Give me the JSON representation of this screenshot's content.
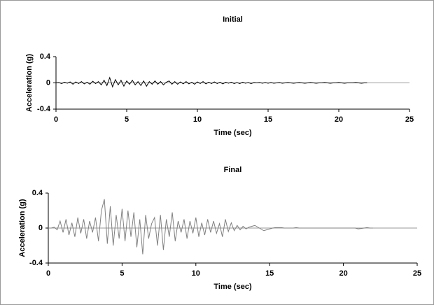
{
  "chart_data": [
    {
      "type": "line",
      "title": "Initial",
      "xlabel": "Time (sec)",
      "ylabel": "Acceleration (g)",
      "xlim": [
        0,
        25
      ],
      "xticks": [
        0,
        5,
        10,
        15,
        20,
        25
      ],
      "ylim": [
        -0.4,
        0.4
      ],
      "yticks": [
        -0.4,
        0,
        0.4
      ],
      "color": "#000000",
      "x": [
        0,
        0.2,
        0.4,
        0.6,
        0.8,
        1,
        1.2,
        1.4,
        1.6,
        1.8,
        2,
        2.2,
        2.4,
        2.6,
        2.8,
        3,
        3.2,
        3.4,
        3.6,
        3.8,
        4,
        4.2,
        4.4,
        4.6,
        4.8,
        5,
        5.2,
        5.4,
        5.6,
        5.8,
        6,
        6.2,
        6.4,
        6.6,
        6.8,
        7,
        7.2,
        7.4,
        7.6,
        7.8,
        8,
        8.2,
        8.4,
        8.6,
        8.8,
        9,
        9.2,
        9.4,
        9.6,
        9.8,
        10,
        10.2,
        10.4,
        10.6,
        10.8,
        11,
        11.2,
        11.4,
        11.6,
        11.8,
        12,
        12.2,
        12.4,
        12.6,
        12.8,
        13,
        13.2,
        13.4,
        13.6,
        13.8,
        14,
        14.2,
        14.4,
        14.6,
        14.8,
        15,
        15.2,
        15.4,
        15.6,
        15.8,
        16,
        16.2,
        16.4,
        16.6,
        16.8,
        17,
        17.2,
        17.4,
        17.6,
        17.8,
        18,
        18.2,
        18.4,
        18.6,
        18.8,
        19,
        19.2,
        19.4,
        19.6,
        19.8,
        20,
        20.2,
        20.4,
        20.6,
        20.8,
        21,
        21.2,
        21.4,
        21.6,
        21.8,
        22
      ],
      "values": [
        0,
        0.005,
        -0.01,
        0.01,
        -0.005,
        0.015,
        -0.02,
        0.015,
        -0.01,
        0.02,
        -0.015,
        0.01,
        -0.02,
        0.025,
        -0.01,
        0.02,
        -0.03,
        0.04,
        -0.04,
        0.08,
        -0.06,
        0.05,
        -0.03,
        0.04,
        -0.05,
        0.03,
        -0.02,
        0.04,
        -0.03,
        0.02,
        -0.04,
        0.03,
        -0.05,
        0.02,
        -0.02,
        0.03,
        -0.02,
        0.02,
        -0.03,
        0.01,
        0.03,
        -0.02,
        0.02,
        -0.02,
        0.015,
        -0.015,
        0.02,
        -0.015,
        0.01,
        -0.02,
        0.015,
        -0.01,
        0.02,
        -0.015,
        0.01,
        -0.01,
        0.015,
        -0.01,
        0.01,
        -0.015,
        0.01,
        -0.005,
        0.01,
        -0.01,
        0.005,
        -0.01,
        0.01,
        -0.005,
        0.005,
        -0.01,
        0.005,
        0,
        0.005,
        -0.005,
        0.005,
        -0.005,
        0.005,
        -0.005,
        0,
        0.005,
        -0.005,
        0,
        0.005,
        0,
        -0.005,
        0,
        0.005,
        0,
        -0.005,
        0,
        0.005,
        0,
        -0.005,
        0,
        0,
        0.005,
        0,
        -0.005,
        0,
        0,
        0.005,
        0,
        -0.005,
        0,
        0,
        0,
        0.005,
        0,
        -0.005,
        0,
        0
      ]
    },
    {
      "type": "line",
      "title": "Final",
      "xlabel": "Time (sec)",
      "ylabel": "Acceleration (g)",
      "xlim": [
        0,
        25
      ],
      "xticks": [
        0,
        5,
        10,
        15,
        20,
        25
      ],
      "ylim": [
        -0.4,
        0.4
      ],
      "yticks": [
        -0.4,
        0,
        0.4
      ],
      "color": "#808080",
      "x": [
        0,
        0.2,
        0.4,
        0.6,
        0.8,
        1,
        1.2,
        1.4,
        1.6,
        1.8,
        2,
        2.2,
        2.4,
        2.6,
        2.8,
        3,
        3.2,
        3.4,
        3.6,
        3.8,
        4,
        4.2,
        4.4,
        4.6,
        4.8,
        5,
        5.2,
        5.4,
        5.6,
        5.8,
        6,
        6.2,
        6.4,
        6.6,
        6.8,
        7,
        7.2,
        7.4,
        7.6,
        7.8,
        8,
        8.2,
        8.4,
        8.6,
        8.8,
        9,
        9.2,
        9.4,
        9.6,
        9.8,
        10,
        10.2,
        10.4,
        10.6,
        10.8,
        11,
        11.2,
        11.4,
        11.6,
        11.8,
        12,
        12.2,
        12.4,
        12.6,
        12.8,
        13,
        13.2,
        13.4,
        13.6,
        13.8,
        14,
        14.2,
        14.4,
        14.6,
        14.8,
        15,
        15.2,
        15.4,
        15.6,
        15.8,
        16,
        16.2,
        16.4,
        16.6,
        16.8,
        17,
        17.2,
        17.4,
        17.6,
        17.8,
        18,
        18.2,
        18.4,
        18.6,
        18.8,
        19,
        19.2,
        19.4,
        19.6,
        19.8,
        20,
        20.2,
        20.4,
        20.6,
        20.8,
        21,
        21.2,
        21.4,
        21.6,
        21.8,
        22
      ],
      "values": [
        0,
        0,
        0.01,
        -0.02,
        0.08,
        -0.05,
        0.1,
        -0.08,
        0.06,
        -0.1,
        0.12,
        -0.06,
        0.1,
        -0.12,
        0.08,
        -0.05,
        0.12,
        -0.15,
        0.2,
        0.33,
        -0.18,
        0.25,
        -0.2,
        0.15,
        -0.12,
        0.22,
        -0.15,
        0.2,
        -0.1,
        0.18,
        -0.22,
        0.1,
        -0.3,
        0.15,
        -0.12,
        0.05,
        0.12,
        -0.2,
        0.15,
        -0.25,
        0.1,
        -0.1,
        0.18,
        -0.15,
        0.08,
        -0.05,
        0.1,
        -0.12,
        0.08,
        -0.06,
        0.12,
        -0.1,
        0.06,
        -0.08,
        0.1,
        -0.05,
        0.08,
        -0.06,
        0.05,
        -0.1,
        0.1,
        -0.04,
        0.06,
        -0.03,
        0.03,
        -0.02,
        0.02,
        -0.01,
        0.01,
        0.02,
        0.03,
        0.01,
        -0.01,
        -0.03,
        -0.02,
        -0.01,
        0,
        0.005,
        0.005,
        0.005,
        0,
        0,
        0,
        0,
        0.005,
        0,
        0,
        0,
        0,
        0,
        0,
        0,
        0,
        0,
        0,
        0,
        0,
        0,
        0,
        0,
        0,
        0,
        0,
        0,
        0,
        -0.01,
        -0.005,
        0,
        0.005,
        0,
        0
      ]
    }
  ]
}
